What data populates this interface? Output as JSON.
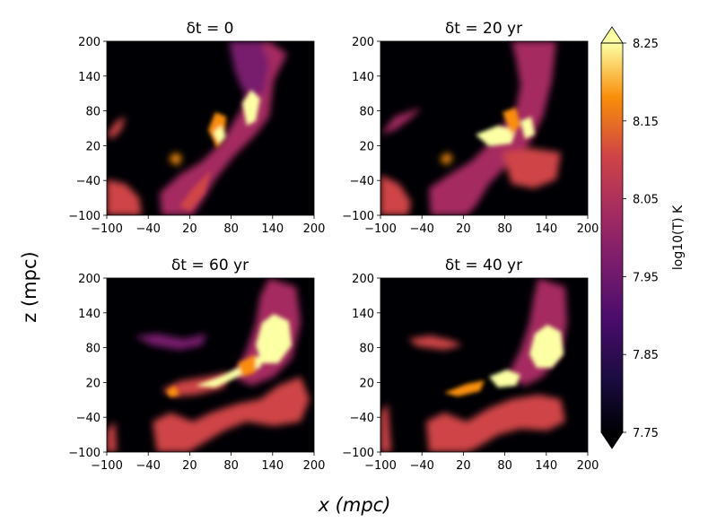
{
  "chart_data": {
    "type": "heatmap",
    "panels": [
      {
        "title": "δt = 0",
        "xlim": [
          -100,
          200
        ],
        "ylim": [
          -100,
          200
        ],
        "xticks": [
          "−100",
          "−40",
          "20",
          "80",
          "140",
          "200"
        ],
        "yticks": [
          "200",
          "140",
          "80",
          "20",
          "−40",
          "−100"
        ]
      },
      {
        "title": "δt = 20 yr",
        "xlim": [
          -100,
          200
        ],
        "ylim": [
          -100,
          200
        ],
        "xticks": [
          "−100",
          "−40",
          "20",
          "80",
          "140",
          "200"
        ],
        "yticks": [
          "200",
          "140",
          "80",
          "20",
          "−40",
          "−100"
        ]
      },
      {
        "title": "δt = 60 yr",
        "xlim": [
          -100,
          200
        ],
        "ylim": [
          -100,
          200
        ],
        "xticks": [
          "−100",
          "−40",
          "20",
          "80",
          "140",
          "200"
        ],
        "yticks": [
          "200",
          "140",
          "80",
          "20",
          "−40",
          "−100"
        ]
      },
      {
        "title": "δt = 40 yr",
        "xlim": [
          -100,
          200
        ],
        "ylim": [
          -100,
          200
        ],
        "xticks": [
          "−100",
          "−40",
          "20",
          "80",
          "140",
          "200"
        ],
        "yticks": [
          "200",
          "140",
          "80",
          "20",
          "−40",
          "−100"
        ]
      }
    ],
    "xlabel": "x (mpc)",
    "ylabel": "z (mpc)",
    "colorbar": {
      "label": "log10(T) K",
      "range": [
        7.75,
        8.25
      ],
      "ticks": [
        "8.25",
        "8.15",
        "8.05",
        "7.95",
        "7.85",
        "7.75"
      ],
      "colormap": "inferno",
      "extend": "both"
    }
  }
}
